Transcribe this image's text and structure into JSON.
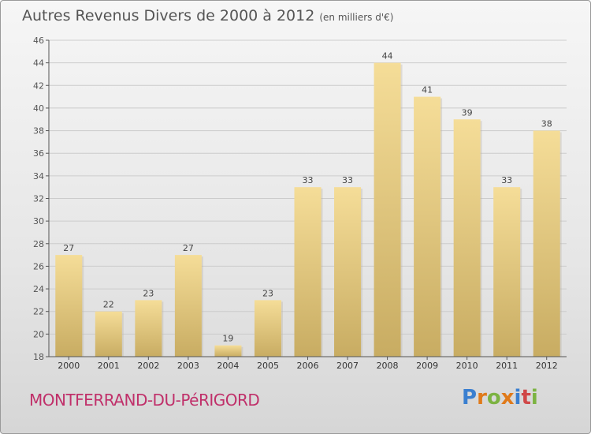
{
  "title": "Autres Revenus Divers de 2000 à 2012",
  "unit_note": "(en milliers d'€)",
  "commune": "MONTFERRAND-DU-PéRIGORD",
  "logo": {
    "text": "Proxiti",
    "colors": [
      "#3a7fd0",
      "#e07a1a",
      "#7cb342",
      "#e07a1a",
      "#3a7fd0",
      "#d04848",
      "#7cb342"
    ]
  },
  "colors": {
    "bar_light": "#f5dd98",
    "bar_dark": "#c8ac62",
    "axis": "#555555",
    "grid": "#cccccc"
  },
  "chart_data": {
    "type": "bar",
    "title": "Autres Revenus Divers de 2000 à 2012",
    "xlabel": "",
    "ylabel": "",
    "categories": [
      "2000",
      "2001",
      "2002",
      "2003",
      "2004",
      "2005",
      "2006",
      "2007",
      "2008",
      "2009",
      "2010",
      "2011",
      "2012"
    ],
    "values": [
      27,
      22,
      23,
      27,
      19,
      23,
      33,
      33,
      44,
      41,
      39,
      33,
      38
    ],
    "ylim": [
      18,
      46
    ],
    "yticks": [
      18,
      20,
      22,
      24,
      26,
      28,
      30,
      32,
      34,
      36,
      38,
      40,
      42,
      44,
      46
    ],
    "grid": true
  }
}
